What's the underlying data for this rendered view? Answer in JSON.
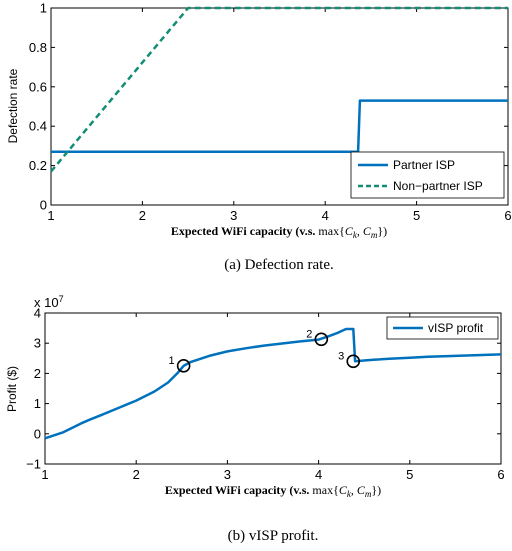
{
  "chart_data": [
    {
      "type": "line",
      "caption": "(a) Defection rate.",
      "xlabel": "Expected WiFi capacity (v.s. max{C_k, C_m})",
      "ylabel": "Defection rate",
      "xlim": [
        1,
        6
      ],
      "ylim": [
        0,
        1
      ],
      "xticks": [
        1,
        2,
        3,
        4,
        5,
        6
      ],
      "yticks": [
        0,
        0.2,
        0.4,
        0.6,
        0.8,
        1
      ],
      "ytick_labels": [
        "0",
        "0.2",
        "0.4",
        "0.6",
        "0.8",
        "1"
      ],
      "grid": false,
      "legend_position": "bottom-right",
      "series": [
        {
          "name": "Partner ISP",
          "color": "#0072BD",
          "style": "solid",
          "x": [
            1,
            4.36,
            4.38,
            6
          ],
          "y": [
            0.27,
            0.27,
            0.53,
            0.53
          ]
        },
        {
          "name": "Non−partner ISP",
          "color": "#138D75",
          "style": "dashed",
          "x": [
            1,
            2.5,
            6
          ],
          "y": [
            0.17,
            1,
            1
          ]
        }
      ]
    },
    {
      "type": "line",
      "caption": "(b) vISP profit.",
      "xlabel": "Expected WiFi capacity (v.s. max{C_k, C_m})",
      "ylabel": "Profit ($)",
      "y_multiplier": "x 10",
      "y_exponent": "7",
      "xlim": [
        1,
        6
      ],
      "ylim": [
        -1,
        4
      ],
      "xticks": [
        1,
        2,
        3,
        4,
        5,
        6
      ],
      "yticks": [
        -1,
        0,
        1,
        2,
        3,
        4
      ],
      "ytick_labels": [
        "−1",
        "0",
        "1",
        "2",
        "3",
        "4"
      ],
      "grid": false,
      "legend_position": "top-right",
      "series": [
        {
          "name": "vISP profit",
          "color": "#0072BD",
          "style": "solid",
          "x": [
            1,
            1.1,
            1.2,
            1.3,
            1.4,
            1.5,
            1.6,
            1.8,
            2.0,
            2.2,
            2.35,
            2.45,
            2.52,
            2.6,
            2.8,
            3.0,
            3.2,
            3.4,
            3.6,
            3.8,
            4.0,
            4.1,
            4.2,
            4.3,
            4.38,
            4.4,
            4.6,
            4.8,
            5.0,
            5.2,
            5.5,
            6.0
          ],
          "y": [
            -0.15,
            -0.05,
            0.05,
            0.2,
            0.35,
            0.48,
            0.6,
            0.85,
            1.1,
            1.4,
            1.7,
            2.0,
            2.25,
            2.38,
            2.58,
            2.73,
            2.83,
            2.92,
            2.99,
            3.06,
            3.12,
            3.22,
            3.33,
            3.47,
            3.47,
            2.4,
            2.45,
            2.49,
            2.52,
            2.55,
            2.58,
            2.63
          ]
        }
      ],
      "annotations": [
        {
          "label": "1",
          "x": 2.52,
          "y": 2.25
        },
        {
          "label": "2",
          "x": 4.03,
          "y": 3.13
        },
        {
          "label": "3",
          "x": 4.38,
          "y": 2.4
        }
      ]
    }
  ]
}
